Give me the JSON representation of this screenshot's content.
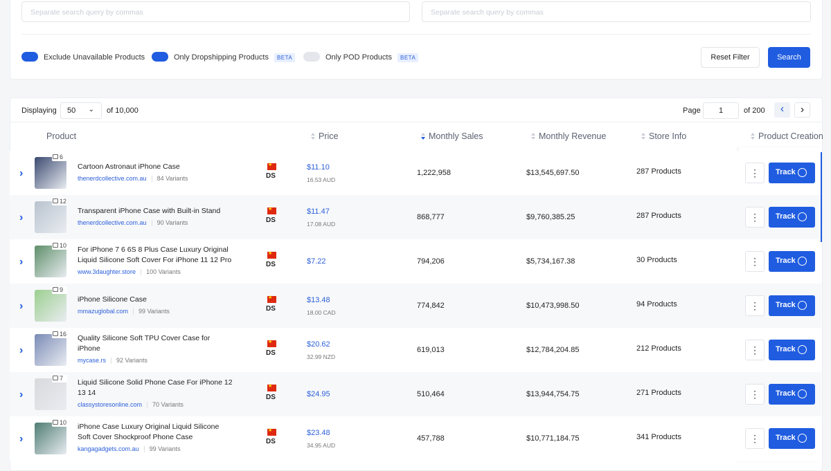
{
  "filters": {
    "search_placeholders": [
      "Separate search query by commas",
      "Separate search query by commas"
    ],
    "toggles": [
      {
        "label": "Exclude Unavailable Products",
        "on": true
      },
      {
        "label": "Only Dropshipping Products",
        "badge": "BETA",
        "on": true
      },
      {
        "label": "Only POD Products",
        "badge": "BETA",
        "on": false
      }
    ],
    "reset": "Reset Filter",
    "search": "Search"
  },
  "toolbar": {
    "displaying": "Displaying",
    "page_size": "50",
    "of_total": "of 10,000",
    "page_label": "Page",
    "page": "1",
    "of_pages": "of 200"
  },
  "columns": [
    "Product",
    "Price",
    "Monthly Sales",
    "Monthly Revenue",
    "Store Info",
    "Product Creation"
  ],
  "rows": [
    {
      "images": "6",
      "title": [
        "Cartoon Astronaut iPhone Case"
      ],
      "store": "thenerdcollective.com.au",
      "variants": "84 Variants",
      "badge": "DS",
      "price": "$11.10",
      "local_price": "16.53 AUD",
      "sales": "1,222,958",
      "revenue": "$13,545,697.50",
      "store_info": "287 Products",
      "action": "Track"
    },
    {
      "images": "12",
      "title": [
        "Transparent iPhone Case with Built-in Stand"
      ],
      "store": "thenerdcollective.com.au",
      "variants": "90 Variants",
      "badge": "DS",
      "price": "$11.47",
      "local_price": "17.08 AUD",
      "sales": "868,777",
      "revenue": "$9,760,385.25",
      "store_info": "287 Products",
      "action": "Track"
    },
    {
      "images": "10",
      "title": [
        "For iPhone 7 6 6S 8 Plus Case Luxury Original",
        "Liquid Silicone Soft Cover For iPhone 11 12 Pro"
      ],
      "store": "www.3daughter.store",
      "variants": "100 Variants",
      "badge": "DS",
      "price": "$7.22",
      "sales": "794,206",
      "revenue": "$5,734,167.38",
      "store_info": "30 Products",
      "action": "Track"
    },
    {
      "images": "9",
      "title": [
        "iPhone Silicone Case"
      ],
      "store": "mmazuglobal.com",
      "variants": "99 Variants",
      "badge": "DS",
      "price": "$13.48",
      "local_price": "18.00 CAD",
      "sales": "774,842",
      "revenue": "$10,473,998.50",
      "store_info": "94 Products",
      "action": "Track"
    },
    {
      "images": "16",
      "title": [
        "Quality Silicone Soft TPU Cover Case for",
        "iPhone"
      ],
      "store": "mycase.rs",
      "variants": "92 Variants",
      "badge": "DS",
      "price": "$20.62",
      "local_price": "32.99 NZD",
      "sales": "619,013",
      "revenue": "$12,784,204.85",
      "store_info": "212 Products",
      "action": "Track"
    },
    {
      "images": "7",
      "title": [
        "Liquid Silicone Solid Phone Case For iPhone 12",
        "13 14"
      ],
      "store": "classystoresonline.com",
      "variants": "70 Variants",
      "badge": "DS",
      "price": "$24.95",
      "sales": "510,464",
      "revenue": "$13,944,754.75",
      "store_info": "271 Products",
      "action": "Track"
    },
    {
      "images": "10",
      "title": [
        "iPhone Case Luxury Original Liquid Silicone",
        "Soft Cover Shockproof Phone Case"
      ],
      "store": "kangagadgets.com.au",
      "variants": "99 Variants",
      "badge": "DS",
      "price": "$23.48",
      "local_price": "34.95 AUD",
      "sales": "457,788",
      "revenue": "$10,771,184.75",
      "store_info": "341 Products",
      "action": "Track"
    }
  ]
}
